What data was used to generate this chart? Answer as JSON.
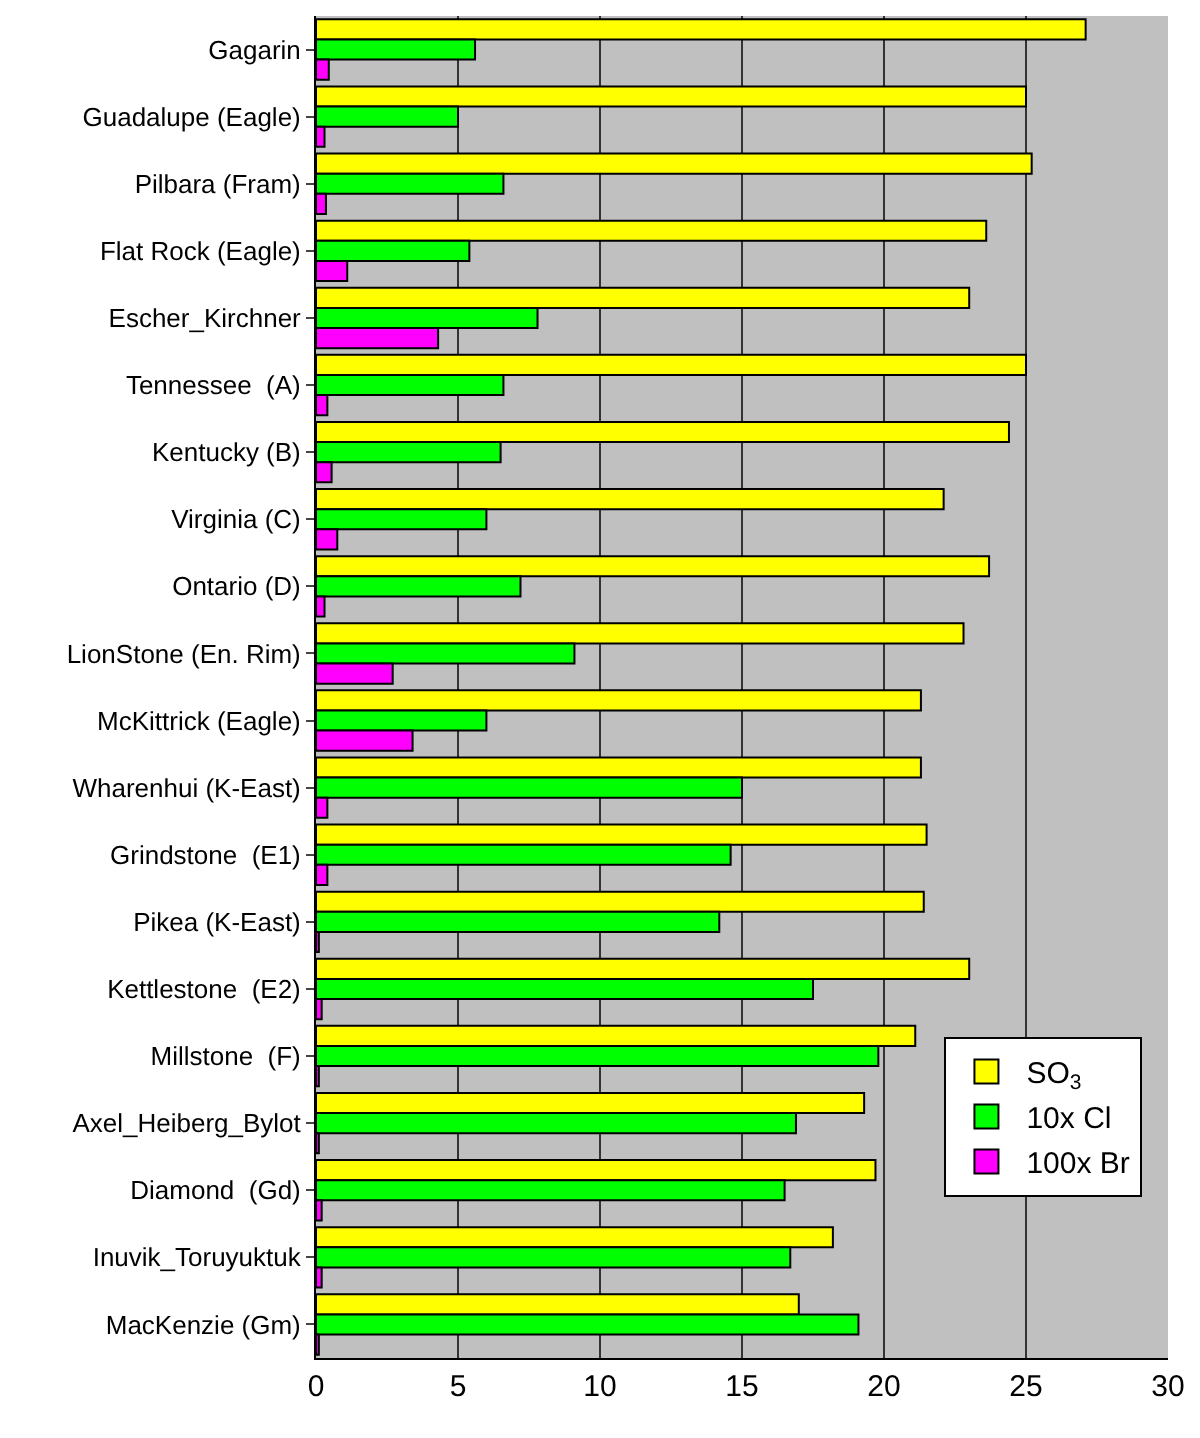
{
  "chart_data": {
    "type": "bar",
    "orientation": "horizontal",
    "categories": [
      "Gagarin",
      "Guadalupe (Eagle)",
      "Pilbara (Fram)",
      "Flat Rock (Eagle)",
      "Escher_Kirchner",
      "Tennessee  (A)",
      "Kentucky (B)",
      "Virginia (C)",
      "Ontario (D)",
      "LionStone (En. Rim)",
      "McKittrick (Eagle)",
      "Wharenhui (K-East)",
      "Grindstone  (E1)",
      "Pikea (K-East)",
      "Kettlestone  (E2)",
      "Millstone  (F)",
      "Axel_Heiberg_Bylot",
      "Diamond  (Gd)",
      "Inuvik_Toruyuktuk",
      "MacKenzie (Gm)"
    ],
    "series": [
      {
        "name": "SO$_{3}$",
        "color": "#ffff00",
        "values": [
          27.1,
          25.0,
          25.2,
          23.6,
          23.0,
          25.0,
          24.4,
          22.1,
          23.7,
          22.8,
          21.3,
          21.3,
          21.5,
          21.4,
          23.0,
          21.1,
          19.3,
          19.7,
          18.2,
          17.0
        ]
      },
      {
        "name": "10x Cl",
        "color": "#00ff00",
        "values": [
          5.6,
          5.0,
          6.6,
          5.4,
          7.8,
          6.6,
          6.5,
          6.0,
          7.2,
          9.1,
          6.0,
          15.0,
          14.6,
          14.2,
          17.5,
          19.8,
          16.9,
          16.5,
          16.7,
          19.1
        ]
      },
      {
        "name": "100x Br",
        "color": "#ff00ff",
        "values": [
          0.45,
          0.3,
          0.35,
          1.1,
          4.3,
          0.4,
          0.55,
          0.75,
          0.3,
          2.7,
          3.4,
          0.4,
          0.4,
          0.1,
          0.2,
          0.1,
          0.1,
          0.2,
          0.2,
          0.1
        ]
      }
    ],
    "xlim": [
      0,
      30
    ],
    "xticks": [
      0,
      5,
      10,
      15,
      20,
      25,
      30
    ],
    "grid": "x",
    "legend": "bottom right"
  }
}
